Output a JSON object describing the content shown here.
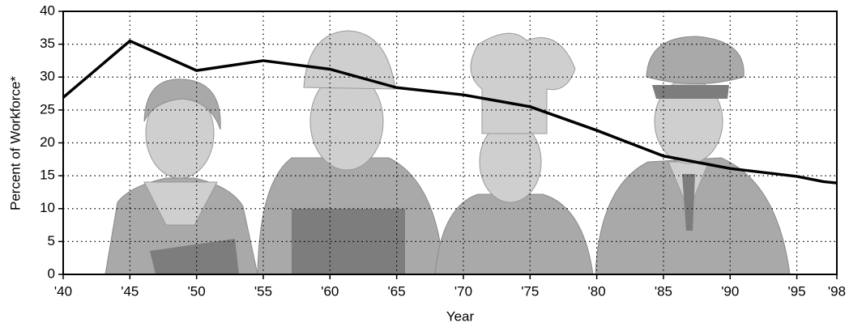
{
  "chart_data": {
    "type": "line",
    "x_label": "Year",
    "y_label": "Percent of Workforce*",
    "x": [
      1940,
      1945,
      1950,
      1955,
      1960,
      1965,
      1970,
      1975,
      1980,
      1985,
      1990,
      1995,
      1996,
      1997,
      1998
    ],
    "series": [
      {
        "color": "#000000",
        "values": [
          26.9,
          35.5,
          31.0,
          32.5,
          31.2,
          28.4,
          27.3,
          25.5,
          21.9,
          18.0,
          16.1,
          14.9,
          14.5,
          14.1,
          13.9
        ]
      }
    ],
    "xlim": [
      1940,
      1998
    ],
    "xticks": [
      {
        "value": 1940,
        "label": "'40"
      },
      {
        "value": 1945,
        "label": "'45"
      },
      {
        "value": 1950,
        "label": "'50"
      },
      {
        "value": 1955,
        "label": "'55"
      },
      {
        "value": 1960,
        "label": "'60"
      },
      {
        "value": 1965,
        "label": "'65"
      },
      {
        "value": 1970,
        "label": "'70"
      },
      {
        "value": 1975,
        "label": "'75"
      },
      {
        "value": 1980,
        "label": "'80"
      },
      {
        "value": 1985,
        "label": "'85"
      },
      {
        "value": 1990,
        "label": "'90"
      },
      {
        "value": 1995,
        "label": "'95"
      },
      {
        "value": 1998,
        "label": "'98"
      }
    ],
    "ylim": [
      0,
      40
    ],
    "yticks": [
      0,
      5,
      10,
      15,
      20,
      25,
      30,
      35,
      40
    ],
    "grid": true
  }
}
